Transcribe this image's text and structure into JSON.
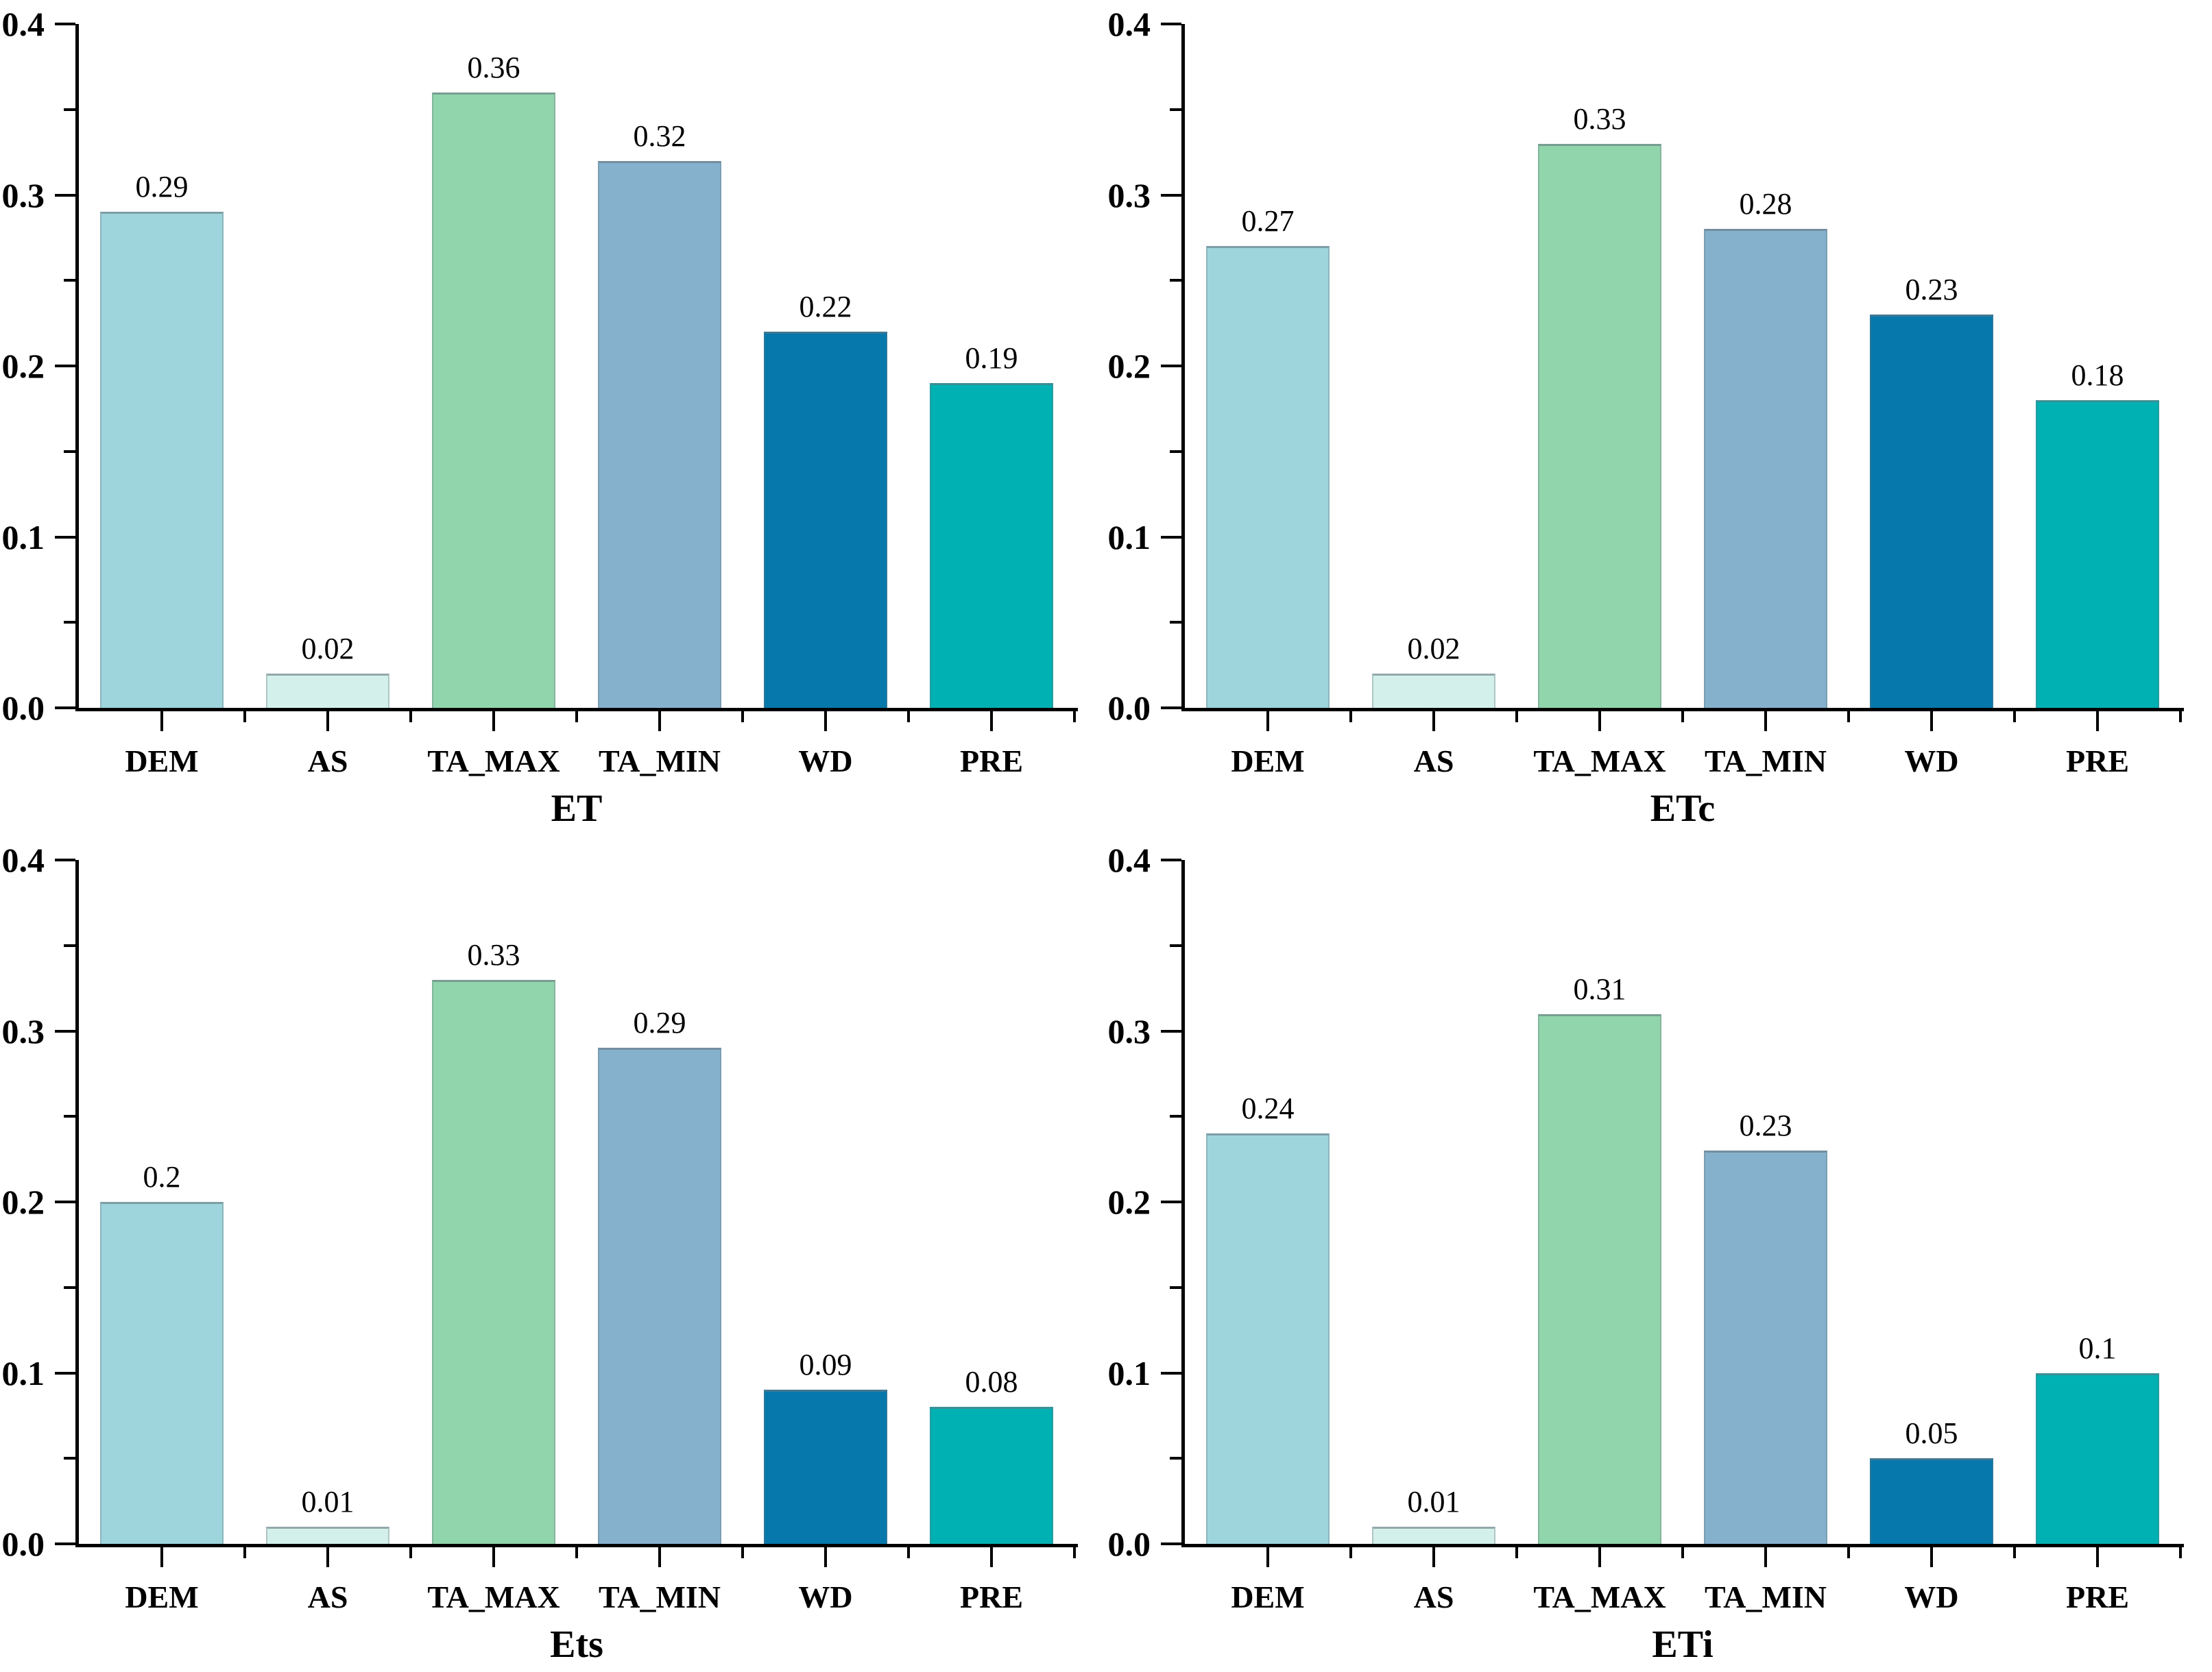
{
  "page": {
    "background_color": "#ffffff",
    "text_color": "#000000"
  },
  "axis": {
    "y_major_ticks": [
      0.0,
      0.1,
      0.2,
      0.3,
      0.4
    ],
    "y_minor_ticks": [
      0.05,
      0.15,
      0.25,
      0.35
    ],
    "ylim": [
      0,
      0.4
    ],
    "grid": false,
    "legend": "none",
    "spines": [
      "left",
      "bottom"
    ]
  },
  "bar_colors": {
    "DEM": "#9ed5dc",
    "AS": "#d4f0ea",
    "TA_MAX": "#91d5ac",
    "TA_MIN": "#85b1cd",
    "WD": "#0678ab",
    "PRE": "#00b1b3"
  },
  "chart_data": [
    {
      "type": "bar",
      "title": "ET",
      "xlabel": "ET",
      "ylabel": "",
      "categories": [
        "DEM",
        "AS",
        "TA_MAX",
        "TA_MIN",
        "WD",
        "PRE"
      ],
      "values": [
        0.29,
        0.02,
        0.36,
        0.32,
        0.22,
        0.19
      ],
      "value_labels": [
        "0.29",
        "0.02",
        "0.36",
        "0.32",
        "0.22",
        "0.19"
      ],
      "colors": [
        "#9ed5dc",
        "#d4f0ea",
        "#91d5ac",
        "#85b1cd",
        "#0678ab",
        "#00b1b3"
      ],
      "ylim": [
        0,
        0.4
      ]
    },
    {
      "type": "bar",
      "title": "ETc",
      "xlabel": "ETc",
      "ylabel": "",
      "categories": [
        "DEM",
        "AS",
        "TA_MAX",
        "TA_MIN",
        "WD",
        "PRE"
      ],
      "values": [
        0.27,
        0.02,
        0.33,
        0.28,
        0.23,
        0.18
      ],
      "value_labels": [
        "0.27",
        "0.02",
        "0.33",
        "0.28",
        "0.23",
        "0.18"
      ],
      "colors": [
        "#9ed5dc",
        "#d4f0ea",
        "#91d5ac",
        "#85b1cd",
        "#0678ab",
        "#00b1b3"
      ],
      "ylim": [
        0,
        0.4
      ]
    },
    {
      "type": "bar",
      "title": "Ets",
      "xlabel": "Ets",
      "ylabel": "",
      "categories": [
        "DEM",
        "AS",
        "TA_MAX",
        "TA_MIN",
        "WD",
        "PRE"
      ],
      "values": [
        0.2,
        0.01,
        0.33,
        0.29,
        0.09,
        0.08
      ],
      "value_labels": [
        "0.2",
        "0.01",
        "0.33",
        "0.29",
        "0.09",
        "0.08"
      ],
      "colors": [
        "#9ed5dc",
        "#d4f0ea",
        "#91d5ac",
        "#85b1cd",
        "#0678ab",
        "#00b1b3"
      ],
      "ylim": [
        0,
        0.4
      ]
    },
    {
      "type": "bar",
      "title": "ETi",
      "xlabel": "ETi",
      "ylabel": "",
      "categories": [
        "DEM",
        "AS",
        "TA_MAX",
        "TA_MIN",
        "WD",
        "PRE"
      ],
      "values": [
        0.24,
        0.01,
        0.31,
        0.23,
        0.05,
        0.1
      ],
      "value_labels": [
        "0.24",
        "0.01",
        "0.31",
        "0.23",
        "0.05",
        "0.1"
      ],
      "colors": [
        "#9ed5dc",
        "#d4f0ea",
        "#91d5ac",
        "#85b1cd",
        "#0678ab",
        "#00b1b3"
      ],
      "ylim": [
        0,
        0.4
      ]
    }
  ]
}
